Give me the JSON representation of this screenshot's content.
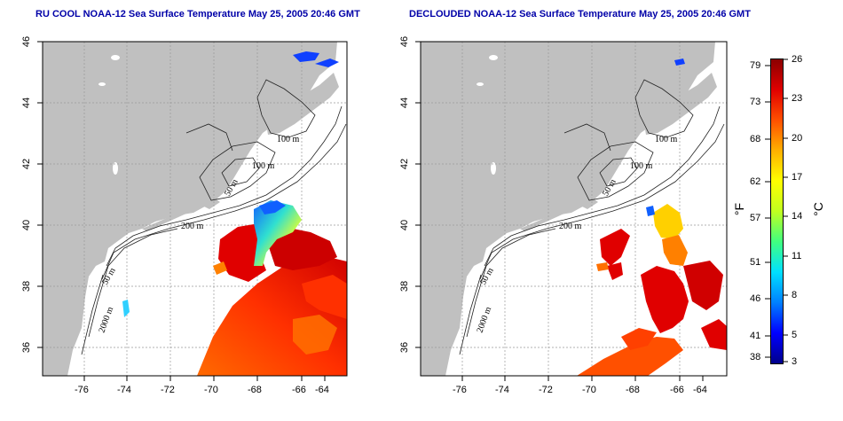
{
  "left_panel": {
    "title": "RU COOL NOAA-12 Sea Surface Temperature May 25, 2005 20:46 GMT",
    "contour_labels": [
      "100 m",
      "100 m",
      "50 m",
      "200 m",
      "50 m",
      "2000 m"
    ]
  },
  "right_panel": {
    "title": "DECLOUDED NOAA-12 Sea Surface Temperature May 25, 2005 20:46 GMT",
    "contour_labels": [
      "100 m",
      "100 m",
      "50 m",
      "200 m",
      "50 m",
      "2000 m"
    ]
  },
  "axes": {
    "x_ticks": [
      "-76",
      "-74",
      "-72",
      "-70",
      "-68",
      "-66",
      "-64"
    ],
    "y_ticks": [
      "46",
      "44",
      "42",
      "40",
      "38",
      "36"
    ]
  },
  "colorbar": {
    "fahrenheit_label": "°F",
    "celsius_label": "°C",
    "fahrenheit_ticks": [
      "79",
      "73",
      "68",
      "62",
      "57",
      "51",
      "46",
      "41",
      "38"
    ],
    "celsius_ticks": [
      "26",
      "23",
      "20",
      "17",
      "14",
      "11",
      "8",
      "5",
      "3"
    ],
    "colors": [
      "#00008b",
      "#0000ff",
      "#0080ff",
      "#00e0ff",
      "#40ff80",
      "#c0ff20",
      "#ffff00",
      "#ffb000",
      "#ff5000",
      "#e00000",
      "#8b0000"
    ]
  },
  "colors": {
    "land": "#c0c0c0",
    "title": "#0000a8"
  }
}
